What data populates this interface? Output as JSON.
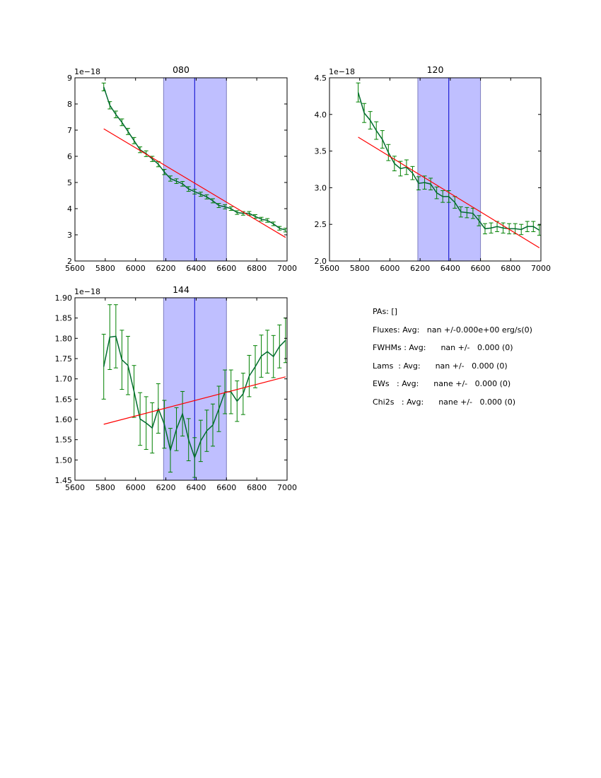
{
  "colors": {
    "data": "#006b2e",
    "errorbar": "#008000",
    "fit": "#ff0000",
    "region": "#bfbfff",
    "center_line": "#0000cc"
  },
  "chart_data": [
    {
      "type": "line",
      "title": "080",
      "offset_label": "1e−18",
      "xlim": [
        5600,
        7000
      ],
      "ylim": [
        2,
        9
      ],
      "xticks": [
        5600,
        5800,
        6000,
        6200,
        6400,
        6600,
        6800,
        7000
      ],
      "yticks": [
        2,
        3,
        4,
        5,
        6,
        7,
        8,
        9
      ],
      "ytick_labels": [
        "2",
        "3",
        "4",
        "5",
        "6",
        "7",
        "8",
        "9"
      ],
      "shaded_region": [
        6185,
        6600
      ],
      "center_line": 6390,
      "x": [
        5790,
        5830,
        5870,
        5910,
        5950,
        5990,
        6030,
        6070,
        6110,
        6150,
        6190,
        6230,
        6270,
        6310,
        6350,
        6390,
        6430,
        6470,
        6510,
        6550,
        6590,
        6630,
        6670,
        6710,
        6750,
        6790,
        6830,
        6870,
        6910,
        6950,
        6990
      ],
      "y": [
        8.65,
        7.95,
        7.6,
        7.3,
        6.95,
        6.6,
        6.25,
        6.1,
        5.9,
        5.7,
        5.4,
        5.15,
        5.05,
        4.95,
        4.75,
        4.65,
        4.55,
        4.45,
        4.3,
        4.12,
        4.07,
        4.0,
        3.85,
        3.82,
        3.82,
        3.7,
        3.6,
        3.55,
        3.42,
        3.25,
        3.18
      ],
      "yerr": [
        0.15,
        0.14,
        0.13,
        0.13,
        0.12,
        0.12,
        0.11,
        0.11,
        0.1,
        0.1,
        0.1,
        0.1,
        0.09,
        0.09,
        0.09,
        0.09,
        0.08,
        0.08,
        0.08,
        0.08,
        0.08,
        0.07,
        0.07,
        0.07,
        0.07,
        0.07,
        0.07,
        0.07,
        0.07,
        0.07,
        0.07
      ],
      "fit": {
        "x": [
          5790,
          6990
        ],
        "y": [
          7.05,
          2.9
        ]
      }
    },
    {
      "type": "line",
      "title": "120",
      "offset_label": "1e−18",
      "xlim": [
        5600,
        7000
      ],
      "ylim": [
        2.0,
        4.5
      ],
      "xticks": [
        5600,
        5800,
        6000,
        6200,
        6400,
        6600,
        6800,
        7000
      ],
      "yticks": [
        2.0,
        2.5,
        3.0,
        3.5,
        4.0,
        4.5
      ],
      "ytick_labels": [
        "2.0",
        "2.5",
        "3.0",
        "3.5",
        "4.0",
        "4.5"
      ],
      "shaded_region": [
        6185,
        6600
      ],
      "center_line": 6390,
      "x": [
        5790,
        5830,
        5870,
        5910,
        5950,
        5990,
        6030,
        6070,
        6110,
        6150,
        6190,
        6230,
        6270,
        6310,
        6350,
        6390,
        6430,
        6470,
        6510,
        6550,
        6590,
        6630,
        6670,
        6710,
        6750,
        6790,
        6830,
        6870,
        6910,
        6950,
        6990
      ],
      "y": [
        4.3,
        4.02,
        3.92,
        3.78,
        3.66,
        3.48,
        3.33,
        3.26,
        3.28,
        3.2,
        3.06,
        3.07,
        3.05,
        2.93,
        2.88,
        2.88,
        2.8,
        2.67,
        2.66,
        2.65,
        2.55,
        2.44,
        2.45,
        2.47,
        2.45,
        2.44,
        2.44,
        2.43,
        2.47,
        2.47,
        2.42
      ],
      "yerr": [
        0.13,
        0.13,
        0.12,
        0.12,
        0.12,
        0.11,
        0.1,
        0.1,
        0.1,
        0.09,
        0.09,
        0.09,
        0.08,
        0.08,
        0.08,
        0.08,
        0.08,
        0.07,
        0.07,
        0.07,
        0.07,
        0.07,
        0.07,
        0.07,
        0.07,
        0.07,
        0.07,
        0.07,
        0.07,
        0.07,
        0.07
      ],
      "fit": {
        "x": [
          5790,
          6990
        ],
        "y": [
          3.69,
          2.18
        ]
      }
    },
    {
      "type": "line",
      "title": "144",
      "offset_label": "1e−18",
      "xlim": [
        5600,
        7000
      ],
      "ylim": [
        1.45,
        1.9
      ],
      "xticks": [
        5600,
        5800,
        6000,
        6200,
        6400,
        6600,
        6800,
        7000
      ],
      "yticks": [
        1.45,
        1.5,
        1.55,
        1.6,
        1.65,
        1.7,
        1.75,
        1.8,
        1.85,
        1.9
      ],
      "ytick_labels": [
        "1.45",
        "1.50",
        "1.55",
        "1.60",
        "1.65",
        "1.70",
        "1.75",
        "1.80",
        "1.85",
        "1.90"
      ],
      "shaded_region": [
        6185,
        6600
      ],
      "center_line": 6390,
      "x": [
        5790,
        5830,
        5870,
        5910,
        5950,
        5990,
        6030,
        6070,
        6110,
        6150,
        6190,
        6230,
        6270,
        6310,
        6350,
        6390,
        6430,
        6470,
        6510,
        6550,
        6590,
        6630,
        6670,
        6710,
        6750,
        6790,
        6830,
        6870,
        6910,
        6950,
        6990
      ],
      "y": [
        1.73,
        1.803,
        1.805,
        1.747,
        1.733,
        1.669,
        1.601,
        1.591,
        1.579,
        1.627,
        1.588,
        1.524,
        1.576,
        1.614,
        1.55,
        1.506,
        1.547,
        1.572,
        1.586,
        1.626,
        1.668,
        1.668,
        1.645,
        1.663,
        1.707,
        1.73,
        1.756,
        1.767,
        1.755,
        1.78,
        1.795
      ],
      "yerr": [
        0.08,
        0.08,
        0.078,
        0.073,
        0.072,
        0.064,
        0.065,
        0.065,
        0.062,
        0.061,
        0.059,
        0.054,
        0.053,
        0.055,
        0.052,
        0.049,
        0.051,
        0.051,
        0.052,
        0.056,
        0.054,
        0.054,
        0.05,
        0.051,
        0.051,
        0.052,
        0.052,
        0.053,
        0.052,
        0.053,
        0.055
      ],
      "fit": {
        "x": [
          5790,
          6990
        ],
        "y": [
          1.588,
          1.705
        ]
      }
    }
  ],
  "summary": {
    "lines": [
      "PAs: []",
      "Fluxes: Avg:   nan +/-0.000e+00 erg/s(0)",
      "FWHMs : Avg:      nan +/-   0.000 (0)",
      "Lams  : Avg:      nan +/-   0.000 (0)",
      "EWs   : Avg:      nane +/-   0.000 (0)",
      "Chi2s   : Avg:      nane +/-   0.000 (0)"
    ]
  }
}
